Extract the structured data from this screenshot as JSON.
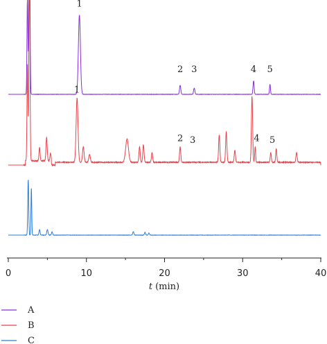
{
  "chart_data": {
    "type": "line",
    "xlabel_italic": "t",
    "xlabel_unit": "(min)",
    "xlim": [
      0,
      40
    ],
    "xticks": [
      0,
      10,
      20,
      30,
      40
    ],
    "grid": false,
    "legend_position": "bottom-left",
    "series": [
      {
        "name": "A",
        "color": "#8a2be2",
        "peaks": [
          {
            "x": 2.7,
            "h": 1.0,
            "w": 0.07
          },
          {
            "x": 2.45,
            "h": 0.55,
            "w": 0.06
          },
          {
            "x": 9.1,
            "h": 0.44,
            "w": 0.13
          },
          {
            "x": 22.0,
            "h": 0.05,
            "w": 0.08
          },
          {
            "x": 23.8,
            "h": 0.035,
            "w": 0.08
          },
          {
            "x": 31.4,
            "h": 0.075,
            "w": 0.07
          },
          {
            "x": 33.5,
            "h": 0.055,
            "w": 0.06
          }
        ],
        "labels": [
          {
            "text": "1",
            "x": 9.1
          },
          {
            "text": "2",
            "x": 22.0
          },
          {
            "text": "3",
            "x": 23.8
          },
          {
            "text": "4",
            "x": 31.4
          },
          {
            "text": "5",
            "x": 33.5
          }
        ]
      },
      {
        "name": "B",
        "color": "#e8424a",
        "peaks": [
          {
            "x": 2.7,
            "h": 1.0,
            "w": 0.07
          },
          {
            "x": 2.45,
            "h": 0.5,
            "w": 0.06
          },
          {
            "x": 4.0,
            "h": 0.07,
            "w": 0.07
          },
          {
            "x": 4.9,
            "h": 0.12,
            "w": 0.08
          },
          {
            "x": 5.4,
            "h": 0.04,
            "w": 0.07
          },
          {
            "x": 8.8,
            "h": 0.33,
            "w": 0.12
          },
          {
            "x": 9.6,
            "h": 0.08,
            "w": 0.1
          },
          {
            "x": 10.4,
            "h": 0.04,
            "w": 0.1
          },
          {
            "x": 15.2,
            "h": 0.12,
            "w": 0.18
          },
          {
            "x": 16.8,
            "h": 0.08,
            "w": 0.08
          },
          {
            "x": 17.3,
            "h": 0.09,
            "w": 0.08
          },
          {
            "x": 18.4,
            "h": 0.05,
            "w": 0.08
          },
          {
            "x": 22.0,
            "h": 0.08,
            "w": 0.08
          },
          {
            "x": 27.0,
            "h": 0.14,
            "w": 0.08
          },
          {
            "x": 27.9,
            "h": 0.16,
            "w": 0.08
          },
          {
            "x": 29.0,
            "h": 0.06,
            "w": 0.08
          },
          {
            "x": 31.2,
            "h": 0.34,
            "w": 0.08
          },
          {
            "x": 31.6,
            "h": 0.08,
            "w": 0.06
          },
          {
            "x": 33.6,
            "h": 0.05,
            "w": 0.07
          },
          {
            "x": 34.3,
            "h": 0.07,
            "w": 0.07
          },
          {
            "x": 36.9,
            "h": 0.05,
            "w": 0.08
          }
        ],
        "labels": [
          {
            "text": "1",
            "x": 8.8
          },
          {
            "text": "2",
            "x": 22.0
          },
          {
            "text": "3",
            "x": 23.6
          },
          {
            "text": "4",
            "x": 31.8
          },
          {
            "text": "5",
            "x": 33.8
          }
        ]
      },
      {
        "name": "C",
        "color": "#2b7bd6",
        "peaks": [
          {
            "x": 2.55,
            "h": 0.4,
            "w": 0.06
          },
          {
            "x": 2.95,
            "h": 0.34,
            "w": 0.05
          },
          {
            "x": 4.0,
            "h": 0.04,
            "w": 0.07
          },
          {
            "x": 5.0,
            "h": 0.04,
            "w": 0.08
          },
          {
            "x": 5.6,
            "h": 0.025,
            "w": 0.07
          },
          {
            "x": 16.0,
            "h": 0.025,
            "w": 0.07
          },
          {
            "x": 17.5,
            "h": 0.02,
            "w": 0.07
          },
          {
            "x": 18.0,
            "h": 0.015,
            "w": 0.07
          }
        ],
        "labels": []
      }
    ]
  }
}
